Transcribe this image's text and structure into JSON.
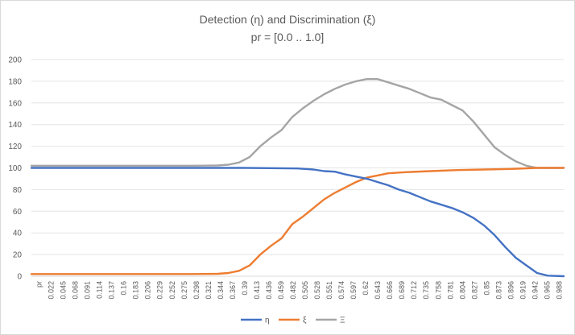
{
  "chart_data": {
    "type": "line",
    "title": "Detection (η) and Discrimination (ξ)",
    "subtitle": "pr = [0.0 .. 1.0]",
    "x_axis_first_label": "pr",
    "x_tick_labels": [
      "0.022",
      "0.045",
      "0.068",
      "0.091",
      "0.114",
      "0.137",
      "0.16",
      "0.183",
      "0.206",
      "0.229",
      "0.252",
      "0.275",
      "0.298",
      "0.321",
      "0.344",
      "0.367",
      "0.39",
      "0.413",
      "0.436",
      "0.459",
      "0.482",
      "0.505",
      "0.528",
      "0.551",
      "0.574",
      "0.597",
      "0.62",
      "0.643",
      "0.666",
      "0.689",
      "0.712",
      "0.735",
      "0.758",
      "0.781",
      "0.804",
      "0.827",
      "0.85",
      "0.873",
      "0.896",
      "0.919",
      "0.942",
      "0.965",
      "0.988"
    ],
    "y_ticks": [
      0,
      20,
      40,
      60,
      80,
      100,
      120,
      140,
      160,
      180,
      200
    ],
    "ylim": [
      0,
      200
    ],
    "xlim": [
      0,
      1
    ],
    "grid": true,
    "legend_position": "bottom",
    "series": [
      {
        "name": "η",
        "color": "#4472c4",
        "points": [
          [
            0,
            100
          ],
          [
            0.1,
            100
          ],
          [
            0.2,
            100
          ],
          [
            0.3,
            100
          ],
          [
            0.35,
            100
          ],
          [
            0.4,
            100
          ],
          [
            0.45,
            99.8
          ],
          [
            0.5,
            99.5
          ],
          [
            0.53,
            98.5
          ],
          [
            0.55,
            97
          ],
          [
            0.57,
            96.5
          ],
          [
            0.59,
            94
          ],
          [
            0.61,
            92
          ],
          [
            0.63,
            90
          ],
          [
            0.65,
            87
          ],
          [
            0.67,
            84
          ],
          [
            0.69,
            80
          ],
          [
            0.71,
            77
          ],
          [
            0.73,
            73
          ],
          [
            0.75,
            69
          ],
          [
            0.77,
            66
          ],
          [
            0.79,
            63
          ],
          [
            0.81,
            59
          ],
          [
            0.83,
            54
          ],
          [
            0.85,
            47
          ],
          [
            0.87,
            38
          ],
          [
            0.89,
            27
          ],
          [
            0.91,
            17
          ],
          [
            0.93,
            10
          ],
          [
            0.95,
            3
          ],
          [
            0.97,
            0.5
          ],
          [
            1,
            0
          ]
        ]
      },
      {
        "name": "ξ",
        "color": "#ed7d31",
        "points": [
          [
            0,
            2
          ],
          [
            0.1,
            2
          ],
          [
            0.2,
            2
          ],
          [
            0.3,
            2
          ],
          [
            0.35,
            2.2
          ],
          [
            0.37,
            3
          ],
          [
            0.39,
            5
          ],
          [
            0.41,
            10
          ],
          [
            0.43,
            20
          ],
          [
            0.45,
            28
          ],
          [
            0.47,
            35
          ],
          [
            0.49,
            48
          ],
          [
            0.51,
            55
          ],
          [
            0.53,
            63
          ],
          [
            0.55,
            71
          ],
          [
            0.57,
            77
          ],
          [
            0.59,
            82
          ],
          [
            0.61,
            87
          ],
          [
            0.63,
            91
          ],
          [
            0.65,
            93
          ],
          [
            0.67,
            95
          ],
          [
            0.7,
            96
          ],
          [
            0.75,
            97
          ],
          [
            0.8,
            98
          ],
          [
            0.85,
            98.5
          ],
          [
            0.9,
            99
          ],
          [
            0.95,
            100
          ],
          [
            1,
            100
          ]
        ]
      },
      {
        "name": "Ξ",
        "color": "#a5a5a5",
        "points": [
          [
            0,
            102
          ],
          [
            0.1,
            102
          ],
          [
            0.2,
            102
          ],
          [
            0.3,
            102
          ],
          [
            0.35,
            102.2
          ],
          [
            0.37,
            103
          ],
          [
            0.39,
            105
          ],
          [
            0.41,
            110
          ],
          [
            0.43,
            120
          ],
          [
            0.45,
            128
          ],
          [
            0.47,
            135
          ],
          [
            0.49,
            147
          ],
          [
            0.51,
            155
          ],
          [
            0.53,
            162
          ],
          [
            0.55,
            168
          ],
          [
            0.57,
            173
          ],
          [
            0.59,
            177
          ],
          [
            0.61,
            180
          ],
          [
            0.63,
            182
          ],
          [
            0.65,
            182
          ],
          [
            0.67,
            179
          ],
          [
            0.69,
            176
          ],
          [
            0.71,
            173
          ],
          [
            0.73,
            169
          ],
          [
            0.75,
            165
          ],
          [
            0.77,
            163
          ],
          [
            0.79,
            158
          ],
          [
            0.81,
            153
          ],
          [
            0.83,
            143
          ],
          [
            0.85,
            131
          ],
          [
            0.87,
            119
          ],
          [
            0.89,
            112
          ],
          [
            0.91,
            106
          ],
          [
            0.93,
            102
          ],
          [
            0.95,
            100
          ],
          [
            1,
            100
          ]
        ]
      }
    ]
  }
}
